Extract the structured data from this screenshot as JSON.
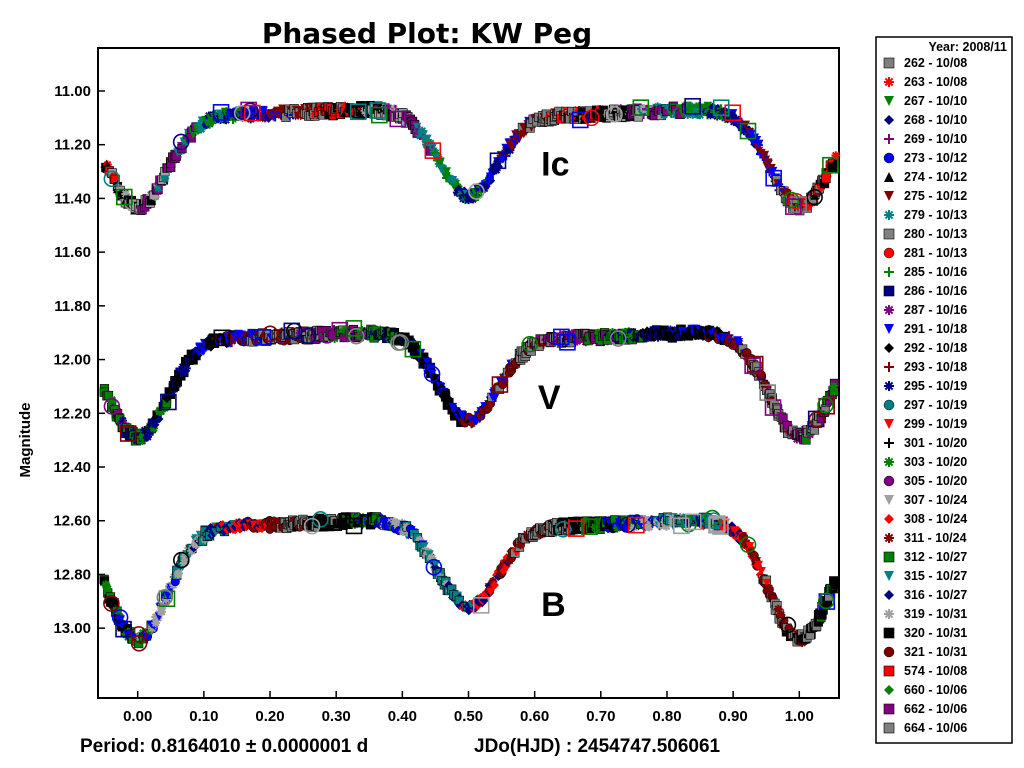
{
  "chart_data": {
    "type": "scatter",
    "title": "Phased Plot: KW Peg",
    "xlabel": "",
    "ylabel": "Magnitude",
    "xlim": [
      -0.06,
      1.06
    ],
    "ylim": [
      13.26,
      10.84
    ],
    "y_inverted": true,
    "x_ticks": [
      "0.00",
      "0.10",
      "0.20",
      "0.30",
      "0.40",
      "0.50",
      "0.60",
      "0.70",
      "0.80",
      "0.90",
      "1.00"
    ],
    "x_tick_values": [
      0.0,
      0.1,
      0.2,
      0.3,
      0.4,
      0.5,
      0.6,
      0.7,
      0.8,
      0.9,
      1.0
    ],
    "y_ticks": [
      "11.00",
      "11.20",
      "11.40",
      "11.60",
      "11.80",
      "12.00",
      "12.20",
      "12.40",
      "12.60",
      "12.80",
      "13.00"
    ],
    "y_tick_values": [
      11.0,
      11.2,
      11.4,
      11.6,
      11.8,
      12.0,
      12.2,
      12.4,
      12.6,
      12.8,
      13.0
    ],
    "grid": false,
    "legend_position": "right",
    "band_labels": [
      {
        "text": "Ic",
        "x": 0.64,
        "y": 11.27
      },
      {
        "text": "V",
        "x": 0.635,
        "y": 12.14
      },
      {
        "text": "B",
        "x": 0.64,
        "y": 12.91
      }
    ],
    "light_curves": [
      {
        "band": "Ic",
        "max_mag": 11.08,
        "primary_min_mag": 11.43,
        "secondary_min_mag": 11.38,
        "max2_mag": 11.07
      },
      {
        "band": "V",
        "max_mag": 11.91,
        "primary_min_mag": 12.29,
        "secondary_min_mag": 12.22,
        "max2_mag": 11.9
      },
      {
        "band": "B",
        "max_mag": 12.61,
        "primary_min_mag": 13.04,
        "secondary_min_mag": 12.94,
        "max2_mag": 12.63
      }
    ],
    "legend": {
      "header": "Year: 2008/11",
      "series": [
        {
          "name": "262 - 10/08",
          "marker": "square",
          "color": "#7f7f7f"
        },
        {
          "name": "263 - 10/08",
          "marker": "asterisk",
          "color": "#ff0000"
        },
        {
          "name": "267 - 10/10",
          "marker": "triangle-down",
          "color": "#008000"
        },
        {
          "name": "268 - 10/10",
          "marker": "diamond",
          "color": "#000080"
        },
        {
          "name": "269 - 10/10",
          "marker": "plus",
          "color": "#800080"
        },
        {
          "name": "273 - 10/12",
          "marker": "circle",
          "color": "#0000ff"
        },
        {
          "name": "274 - 10/12",
          "marker": "triangle-up",
          "color": "#000000"
        },
        {
          "name": "275 - 10/12",
          "marker": "triangle-down",
          "color": "#800000"
        },
        {
          "name": "279 - 10/13",
          "marker": "asterisk",
          "color": "#008080"
        },
        {
          "name": "280 - 10/13",
          "marker": "square",
          "color": "#808080"
        },
        {
          "name": "281 - 10/13",
          "marker": "circle",
          "color": "#ff0000"
        },
        {
          "name": "285 - 10/16",
          "marker": "plus",
          "color": "#008000"
        },
        {
          "name": "286 - 10/16",
          "marker": "square",
          "color": "#000080"
        },
        {
          "name": "287 - 10/16",
          "marker": "asterisk",
          "color": "#800080"
        },
        {
          "name": "291 - 10/18",
          "marker": "triangle-down",
          "color": "#0000ff"
        },
        {
          "name": "292 - 10/18",
          "marker": "diamond",
          "color": "#000000"
        },
        {
          "name": "293 - 10/18",
          "marker": "plus",
          "color": "#800000"
        },
        {
          "name": "295 - 10/19",
          "marker": "asterisk",
          "color": "#000080"
        },
        {
          "name": "297 - 10/19",
          "marker": "circle",
          "color": "#008080"
        },
        {
          "name": "299 - 10/19",
          "marker": "triangle-down",
          "color": "#ff0000"
        },
        {
          "name": "301 - 10/20",
          "marker": "plus",
          "color": "#000000"
        },
        {
          "name": "303 - 10/20",
          "marker": "asterisk",
          "color": "#008000"
        },
        {
          "name": "305 - 10/20",
          "marker": "circle",
          "color": "#800080"
        },
        {
          "name": "307 - 10/24",
          "marker": "triangle-down",
          "color": "#a0a0a0"
        },
        {
          "name": "308 - 10/24",
          "marker": "diamond",
          "color": "#ff0000"
        },
        {
          "name": "311 - 10/24",
          "marker": "asterisk",
          "color": "#800000"
        },
        {
          "name": "312 - 10/27",
          "marker": "square",
          "color": "#008000"
        },
        {
          "name": "315 - 10/27",
          "marker": "triangle-down",
          "color": "#008080"
        },
        {
          "name": "316 - 10/27",
          "marker": "diamond",
          "color": "#000080"
        },
        {
          "name": "319 - 10/31",
          "marker": "asterisk",
          "color": "#a0a0a0"
        },
        {
          "name": "320 - 10/31",
          "marker": "square",
          "color": "#000000"
        },
        {
          "name": "321 - 10/31",
          "marker": "circle",
          "color": "#800000"
        },
        {
          "name": "574 - 10/08",
          "marker": "square",
          "color": "#ff0000"
        },
        {
          "name": "660 - 10/06",
          "marker": "diamond",
          "color": "#008000"
        },
        {
          "name": "662 - 10/06",
          "marker": "square",
          "color": "#800080"
        },
        {
          "name": "664 - 10/06",
          "marker": "square",
          "color": "#808080"
        }
      ]
    }
  },
  "footer": {
    "period": "Period: 0.8164010 ± 0.0000001 d",
    "epoch": "JDo(HJD) : 2454747.506061"
  }
}
